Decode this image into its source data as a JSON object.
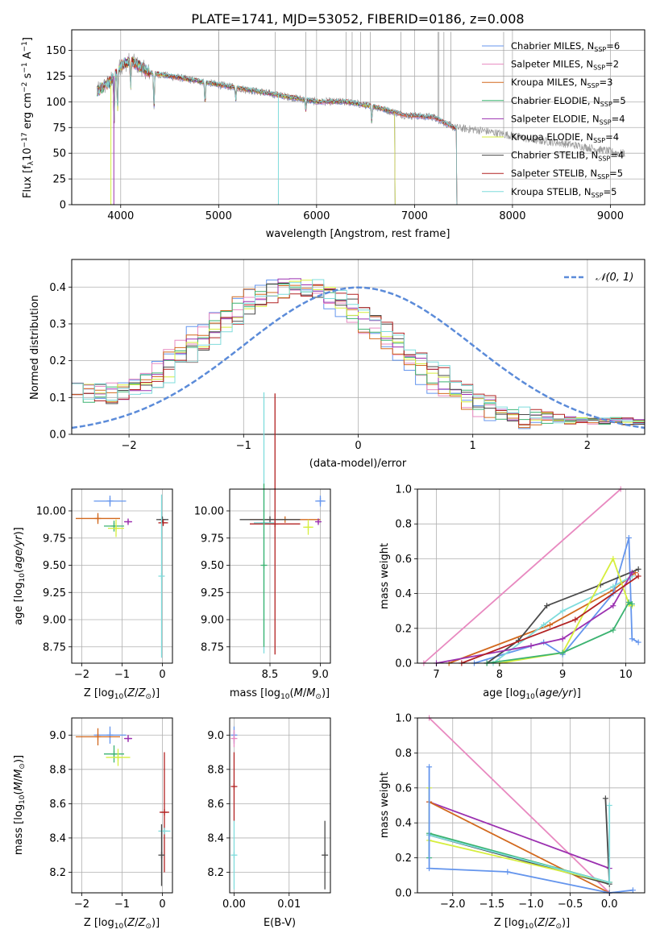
{
  "figure_title": "PLATE=1741, MJD=53052, FIBERID=0186, z=0.008",
  "colors": {
    "Chabrier MILES": "#6495ED",
    "Salpeter MILES": "#E889C0",
    "Kroupa MILES": "#D2691E",
    "Chabrier ELODIE": "#3CB371",
    "Salpeter ELODIE": "#9B30B0",
    "Kroupa ELODIE": "#D6EE3E",
    "Chabrier STELIB": "#4A4A4A",
    "Salpeter STELIB": "#B22222",
    "Kroupa STELIB": "#7FDCDC",
    "normal": "#5B8BD9",
    "grid": "#b0b0b0"
  },
  "chart_data": [
    {
      "id": "spectrum",
      "type": "line",
      "xlabel": "wavelength [Angstrom, rest frame]",
      "ylabel": "Flux [f_λ10^-17 erg cm^-2 s^-1 A^-1]",
      "xlim": [
        3500,
        9350
      ],
      "ylim": [
        0,
        170
      ],
      "xticks": [
        "4000",
        "5000",
        "6000",
        "7000",
        "8000",
        "9000"
      ],
      "yticks": [
        "0",
        "25",
        "50",
        "75",
        "100",
        "125",
        "150"
      ],
      "legend_position": "top-right",
      "legend": [
        {
          "name": "Chabrier MILES",
          "nssp": "6"
        },
        {
          "name": "Salpeter MILES",
          "nssp": "2"
        },
        {
          "name": "Kroupa MILES",
          "nssp": "3"
        },
        {
          "name": "Chabrier ELODIE",
          "nssp": "5"
        },
        {
          "name": "Salpeter ELODIE",
          "nssp": "4"
        },
        {
          "name": "Kroupa ELODIE",
          "nssp": "4"
        },
        {
          "name": "Chabrier STELIB",
          "nssp": "4"
        },
        {
          "name": "Salpeter STELIB",
          "nssp": "5"
        },
        {
          "name": "Kroupa STELIB",
          "nssp": "5"
        }
      ],
      "data_spectrum_continuum": [
        [
          3760,
          110
        ],
        [
          3900,
          120
        ],
        [
          4000,
          135
        ],
        [
          4100,
          140
        ],
        [
          4300,
          128
        ],
        [
          4500,
          125
        ],
        [
          4800,
          120
        ],
        [
          5100,
          115
        ],
        [
          5400,
          110
        ],
        [
          5700,
          105
        ],
        [
          6000,
          100
        ],
        [
          6300,
          100
        ],
        [
          6600,
          95
        ],
        [
          6900,
          87
        ],
        [
          7200,
          85
        ],
        [
          7400,
          75
        ],
        [
          7700,
          72
        ],
        [
          8000,
          67
        ],
        [
          8200,
          63
        ],
        [
          8500,
          60
        ],
        [
          8800,
          55
        ],
        [
          9100,
          50
        ]
      ],
      "model_cutoffs": {
        "ELODIE": 6800,
        "STELIB": 7430,
        "MILES": 7430
      }
    },
    {
      "id": "residuals",
      "type": "line",
      "xlabel": "(data-model)/error",
      "ylabel": "Normed distribution",
      "xlim": [
        -2.5,
        2.5
      ],
      "ylim": [
        0,
        0.475
      ],
      "xticks": [
        "−2",
        "−1",
        "0",
        "1",
        "2"
      ],
      "yticks": [
        "0.0",
        "0.1",
        "0.2",
        "0.3",
        "0.4"
      ],
      "legend_position": "top-right",
      "legend_label": "𝒩(0, 1)",
      "gaussian": {
        "mean": 0,
        "sigma": 1
      },
      "hist_peak": {
        "mean": -0.55,
        "sigma": 0.85,
        "peak": 0.38
      }
    },
    {
      "id": "age-vs-Z",
      "type": "scatter",
      "xlabel": "Z [log10(Z/Z⊙)]",
      "ylabel": "age [log10(age/yr)]",
      "xlim": [
        -2.25,
        0.25
      ],
      "ylim": [
        8.6,
        10.2
      ],
      "xticks": [
        "−2",
        "−1",
        "0"
      ],
      "yticks": [
        "8.75",
        "9.00",
        "9.25",
        "9.50",
        "9.75",
        "10.00"
      ],
      "points": [
        {
          "model": "Chabrier MILES",
          "x": -1.3,
          "y": 10.09,
          "xerr": 0.4,
          "yerr": 0.05
        },
        {
          "model": "Kroupa MILES",
          "x": -1.6,
          "y": 9.93,
          "xerr": 0.55,
          "yerr": 0.05
        },
        {
          "model": "Chabrier ELODIE",
          "x": -1.2,
          "y": 9.86,
          "xerr": 0.25,
          "yerr": 0.05
        },
        {
          "model": "Kroupa ELODIE",
          "x": -1.15,
          "y": 9.84,
          "xerr": 0.2,
          "yerr": 0.08
        },
        {
          "model": "Salpeter ELODIE",
          "x": -0.85,
          "y": 9.9,
          "xerr": 0.1,
          "yerr": 0.02
        },
        {
          "model": "Chabrier STELIB",
          "x": 0.0,
          "y": 9.92,
          "xerr": 0.15,
          "yerr": 0.02
        },
        {
          "model": "Salpeter STELIB",
          "x": 0.02,
          "y": 9.89,
          "xerr": 0.12,
          "yerr": 0.02
        },
        {
          "model": "Kroupa STELIB",
          "x": -0.02,
          "y": 9.4,
          "xerr": 0.0,
          "yerr": 0.75
        }
      ]
    },
    {
      "id": "age-vs-mass",
      "type": "scatter",
      "xlabel": "mass [log10(M/M⊙)]",
      "ylabel": "",
      "xlim": [
        8.1,
        9.1
      ],
      "ylim": [
        8.6,
        10.2
      ],
      "xticks": [
        "8.5",
        "9.0"
      ],
      "yticks": [
        "8.75",
        "9.00",
        "9.25",
        "9.50",
        "9.75",
        "10.00"
      ],
      "points": [
        {
          "model": "Chabrier MILES",
          "x": 9.0,
          "y": 10.09,
          "xerr": 0.05,
          "yerr": 0.05
        },
        {
          "model": "Kroupa MILES",
          "x": 8.65,
          "y": 9.92,
          "xerr": 0.35,
          "yerr": 0.0
        },
        {
          "model": "Chabrier STELIB",
          "x": 8.5,
          "y": 9.92,
          "xerr": 0.3,
          "yerr": 0.0
        },
        {
          "model": "Salpeter STELIB",
          "x": 8.55,
          "y": 9.88,
          "xerr": 0.25,
          "yerr": 1.2
        },
        {
          "model": "Kroupa STELIB",
          "x": 8.44,
          "y": 9.89,
          "xerr": 0.1,
          "yerr": 1.2
        },
        {
          "model": "Chabrier ELODIE",
          "x": 8.44,
          "y": 9.5,
          "xerr": 0.0,
          "yerr": 0.75
        },
        {
          "model": "Kroupa ELODIE",
          "x": 8.88,
          "y": 9.85,
          "xerr": 0.05,
          "yerr": 0.07
        },
        {
          "model": "Salpeter ELODIE",
          "x": 8.98,
          "y": 9.9,
          "xerr": 0.02,
          "yerr": 0.02
        }
      ]
    },
    {
      "id": "massweight-vs-age",
      "type": "line",
      "xlabel": "age [log10(age/yr)]",
      "ylabel": "mass weight",
      "xlim": [
        6.7,
        10.3
      ],
      "ylim": [
        0.0,
        1.0
      ],
      "xticks": [
        "7",
        "8",
        "9",
        "10"
      ],
      "yticks": [
        "0.0",
        "0.2",
        "0.4",
        "0.6",
        "0.8",
        "1.0"
      ],
      "series": [
        {
          "model": "Salpeter MILES",
          "x": [
            6.8,
            9.92
          ],
          "y": [
            0.0,
            1.0
          ]
        },
        {
          "model": "Kroupa MILES",
          "x": [
            7.2,
            8.8,
            9.8,
            10.15
          ],
          "y": [
            0.0,
            0.22,
            0.42,
            0.52
          ]
        },
        {
          "model": "Chabrier MILES",
          "x": [
            7.6,
            8.7,
            9.0,
            9.8,
            10.05,
            10.1,
            10.2
          ],
          "y": [
            0.0,
            0.12,
            0.05,
            0.4,
            0.72,
            0.14,
            0.12
          ]
        },
        {
          "model": "Chabrier STELIB",
          "x": [
            7.8,
            8.3,
            8.75,
            9.6,
            10.2
          ],
          "y": [
            0.0,
            0.13,
            0.33,
            0.45,
            0.54
          ]
        },
        {
          "model": "Kroupa STELIB",
          "x": [
            7.9,
            8.7,
            9.0,
            9.8,
            10.1
          ],
          "y": [
            0.0,
            0.22,
            0.3,
            0.44,
            0.5
          ]
        },
        {
          "model": "Salpeter ELODIE",
          "x": [
            7.0,
            8.5,
            9.0,
            9.8,
            10.1
          ],
          "y": [
            0.0,
            0.1,
            0.14,
            0.33,
            0.52
          ]
        },
        {
          "model": "Kroupa ELODIE",
          "x": [
            8.0,
            9.0,
            9.8,
            10.05,
            10.1
          ],
          "y": [
            0.0,
            0.06,
            0.6,
            0.34,
            0.33
          ]
        },
        {
          "model": "Chabrier ELODIE",
          "x": [
            7.8,
            9.0,
            9.8,
            10.05,
            10.1
          ],
          "y": [
            0.0,
            0.06,
            0.19,
            0.35,
            0.34
          ]
        },
        {
          "model": "Salpeter STELIB",
          "x": [
            7.4,
            9.2,
            10.2
          ],
          "y": [
            0.0,
            0.25,
            0.5
          ]
        }
      ]
    },
    {
      "id": "mass-vs-Z",
      "type": "scatter",
      "xlabel": "Z [log10(Z/Z⊙)]",
      "ylabel": "mass [log10(M/M⊙)]",
      "xlim": [
        -2.25,
        0.25
      ],
      "ylim": [
        8.08,
        9.1
      ],
      "xticks": [
        "−2",
        "−1",
        "0"
      ],
      "yticks": [
        "8.2",
        "8.4",
        "8.6",
        "8.8",
        "9.0"
      ],
      "points": [
        {
          "model": "Chabrier MILES",
          "x": -1.3,
          "y": 9.0,
          "xerr": 0.4,
          "yerr": 0.05
        },
        {
          "model": "Kroupa MILES",
          "x": -1.6,
          "y": 8.99,
          "xerr": 0.55,
          "yerr": 0.05
        },
        {
          "model": "Salpeter ELODIE",
          "x": -0.85,
          "y": 8.98,
          "xerr": 0.1,
          "yerr": 0.02
        },
        {
          "model": "Chabrier ELODIE",
          "x": -1.2,
          "y": 8.89,
          "xerr": 0.25,
          "yerr": 0.05
        },
        {
          "model": "Kroupa ELODIE",
          "x": -1.1,
          "y": 8.87,
          "xerr": 0.3,
          "yerr": 0.05
        },
        {
          "model": "Salpeter STELIB",
          "x": 0.05,
          "y": 8.55,
          "xerr": 0.12,
          "yerr": 0.35
        },
        {
          "model": "Kroupa STELIB",
          "x": 0.05,
          "y": 8.44,
          "xerr": 0.15,
          "yerr": 0.0
        },
        {
          "model": "Chabrier STELIB",
          "x": -0.02,
          "y": 8.3,
          "xerr": 0.0,
          "yerr": 0.18
        }
      ]
    },
    {
      "id": "mass-vs-ebv",
      "type": "scatter",
      "xlabel": "E(B-V)",
      "ylabel": "",
      "xlim": [
        -0.0008,
        0.0175
      ],
      "ylim": [
        8.08,
        9.1
      ],
      "xticks": [
        "0.00",
        "0.01"
      ],
      "yticks": [
        "8.2",
        "8.4",
        "8.6",
        "8.8",
        "9.0"
      ],
      "points": [
        {
          "model": "Chabrier MILES",
          "x": 0.0,
          "y": 9.0,
          "xerr": 0.0,
          "yerr": 0.05
        },
        {
          "model": "Salpeter MILES",
          "x": 0.0,
          "y": 8.98,
          "xerr": 0.0,
          "yerr": 0.05
        },
        {
          "model": "Salpeter STELIB",
          "x": 0.0,
          "y": 8.7,
          "xerr": 0.0,
          "yerr": 0.2
        },
        {
          "model": "Kroupa STELIB",
          "x": 0.0,
          "y": 8.3,
          "xerr": 0.0,
          "yerr": 0.2
        },
        {
          "model": "Chabrier STELIB",
          "x": 0.0165,
          "y": 8.3,
          "xerr": 0.0,
          "yerr": 0.2
        }
      ]
    },
    {
      "id": "massweight-vs-Z",
      "type": "line",
      "xlabel": "Z [log10(Z/Z⊙)]",
      "ylabel": "mass weight",
      "xlim": [
        -2.45,
        0.45
      ],
      "ylim": [
        0.0,
        1.0
      ],
      "xticks": [
        "−2.0",
        "−1.5",
        "−1.0",
        "−0.5",
        "0.0"
      ],
      "yticks": [
        "0.0",
        "0.2",
        "0.4",
        "0.6",
        "0.8",
        "1.0"
      ],
      "series": [
        {
          "model": "Salpeter MILES",
          "x": [
            -2.3,
            0.0
          ],
          "y": [
            1.0,
            0.0
          ]
        },
        {
          "model": "Salpeter ELODIE",
          "x": [
            -2.3,
            0.0
          ],
          "y": [
            0.52,
            0.14
          ]
        },
        {
          "model": "Kroupa MILES",
          "x": [
            -2.3,
            0.0
          ],
          "y": [
            0.52,
            0.0
          ]
        },
        {
          "model": "Chabrier STELIB",
          "x": [
            -2.3,
            0.0,
            -0.05,
            0.0
          ],
          "y": [
            0.33,
            0.05,
            0.54,
            0.06
          ]
        },
        {
          "model": "Kroupa ELODIE",
          "x": [
            -2.3,
            -2.3,
            0.0
          ],
          "y": [
            0.6,
            0.3,
            0.06
          ]
        },
        {
          "model": "Chabrier ELODIE",
          "x": [
            -2.3,
            -2.3,
            0.0
          ],
          "y": [
            0.2,
            0.34,
            0.06
          ]
        },
        {
          "model": "Kroupa STELIB",
          "x": [
            -2.3,
            0.0,
            0.0
          ],
          "y": [
            0.33,
            0.06,
            0.5
          ]
        },
        {
          "model": "Chabrier MILES",
          "x": [
            -2.3,
            -2.3,
            -1.3,
            0.0,
            0.3
          ],
          "y": [
            0.72,
            0.14,
            0.12,
            0.0,
            0.015
          ]
        }
      ]
    }
  ]
}
